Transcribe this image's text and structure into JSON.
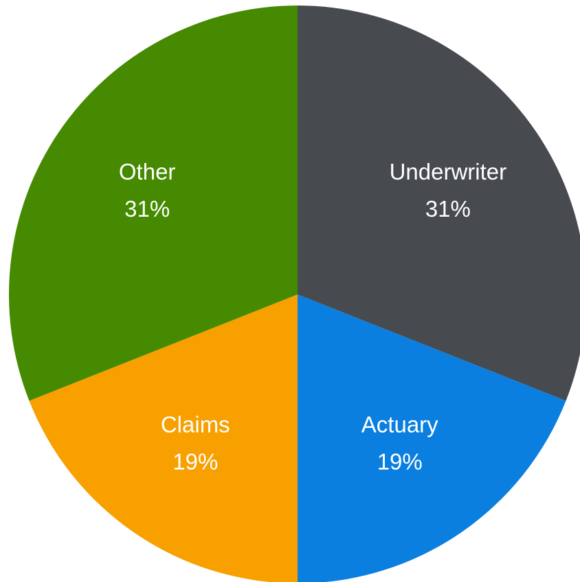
{
  "chart_data": {
    "type": "pie",
    "categories": [
      "Underwriter",
      "Actuary",
      "Claims",
      "Other"
    ],
    "values": [
      31,
      19,
      19,
      31
    ],
    "value_labels": [
      "31%",
      "19%",
      "19%",
      "31%"
    ],
    "colors": [
      "#474a4f",
      "#0a7fe0",
      "#f7a000",
      "#458a00"
    ]
  }
}
